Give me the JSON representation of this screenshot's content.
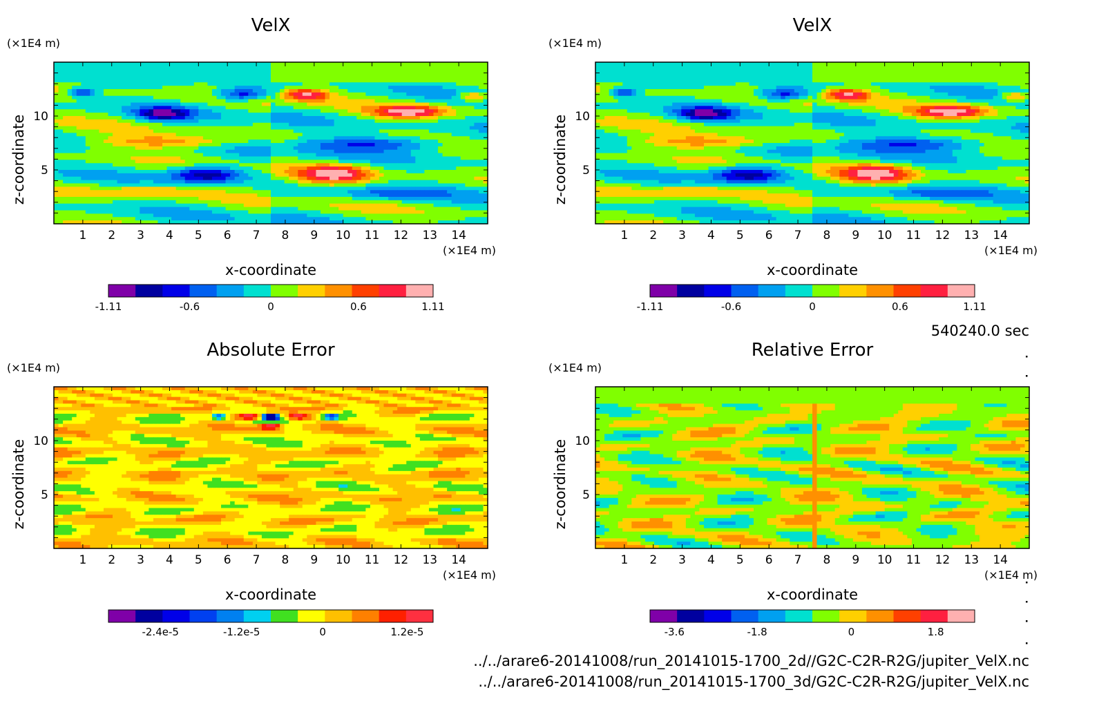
{
  "chart_data": [
    {
      "type": "heatmap",
      "title": "VelX",
      "xlabel": "x-coordinate",
      "ylabel": "z-coordinate",
      "x_unit": "(×1E4 m)",
      "y_unit": "(×1E4 m)",
      "xlim": [
        0,
        15
      ],
      "ylim": [
        0,
        15
      ],
      "xticks": [
        "1",
        "2",
        "3",
        "4",
        "5",
        "6",
        "7",
        "8",
        "9",
        "10",
        "11",
        "12",
        "13",
        "14"
      ],
      "yticks": [
        "5",
        "10"
      ],
      "colorbar": {
        "colors": [
          "#7f00a8",
          "#00009f",
          "#0000e8",
          "#0060f0",
          "#00a0f0",
          "#00e0d0",
          "#80ff00",
          "#ffd000",
          "#ff9000",
          "#ff4000",
          "#ff2040",
          "#ffb0b0"
        ],
        "tick_labels": [
          "-1.11",
          "-0.6",
          "0",
          "0.6",
          "1.11"
        ]
      },
      "field": "velx"
    },
    {
      "type": "heatmap",
      "title": "VelX",
      "xlabel": "x-coordinate",
      "ylabel": "z-coordinate",
      "x_unit": "(×1E4 m)",
      "y_unit": "(×1E4 m)",
      "xlim": [
        0,
        15
      ],
      "ylim": [
        0,
        15
      ],
      "xticks": [
        "1",
        "2",
        "3",
        "4",
        "5",
        "6",
        "7",
        "8",
        "9",
        "10",
        "11",
        "12",
        "13",
        "14"
      ],
      "yticks": [
        "5",
        "10"
      ],
      "colorbar": {
        "colors": [
          "#7f00a8",
          "#00009f",
          "#0000e8",
          "#0060f0",
          "#00a0f0",
          "#00e0d0",
          "#80ff00",
          "#ffd000",
          "#ff9000",
          "#ff4000",
          "#ff2040",
          "#ffb0b0"
        ],
        "tick_labels": [
          "-1.11",
          "-0.6",
          "0",
          "0.6",
          "1.11"
        ]
      },
      "field": "velx"
    },
    {
      "type": "heatmap",
      "title": "Absolute Error",
      "xlabel": "x-coordinate",
      "ylabel": "z-coordinate",
      "x_unit": "(×1E4 m)",
      "y_unit": "(×1E4 m)",
      "xlim": [
        0,
        15
      ],
      "ylim": [
        0,
        15
      ],
      "xticks": [
        "1",
        "2",
        "3",
        "4",
        "5",
        "6",
        "7",
        "8",
        "9",
        "10",
        "11",
        "12",
        "13",
        "14"
      ],
      "yticks": [
        "5",
        "10"
      ],
      "colorbar": {
        "colors": [
          "#7f00a8",
          "#00009f",
          "#0000e8",
          "#0040f0",
          "#0080f0",
          "#00d0f0",
          "#40e020",
          "#ffff00",
          "#ffc000",
          "#ff8000",
          "#ff2000",
          "#ff3040"
        ],
        "tick_labels": [
          "-2.4e-5",
          "-1.2e-5",
          "0",
          "1.2e-5"
        ]
      },
      "field": "abs"
    },
    {
      "type": "heatmap",
      "title": "Relative Error",
      "xlabel": "x-coordinate",
      "ylabel": "z-coordinate",
      "x_unit": "(×1E4 m)",
      "y_unit": "(×1E4 m)",
      "xlim": [
        0,
        15
      ],
      "ylim": [
        0,
        15
      ],
      "xticks": [
        "1",
        "2",
        "3",
        "4",
        "5",
        "6",
        "7",
        "8",
        "9",
        "10",
        "11",
        "12",
        "13",
        "14"
      ],
      "yticks": [
        "5",
        "10"
      ],
      "colorbar": {
        "colors": [
          "#7f00a8",
          "#00009f",
          "#0000e8",
          "#0060f0",
          "#00a0f0",
          "#00e0d0",
          "#80ff00",
          "#ffd000",
          "#ff9000",
          "#ff4000",
          "#ff2040",
          "#ffb0b0"
        ],
        "tick_labels": [
          "-3.6",
          "-1.8",
          "0",
          "1.8"
        ]
      },
      "field": "rel"
    }
  ],
  "time_label": "540240.0 sec",
  "files": [
    "../../arare6-20141008/run_20141015-1700_2d//G2C-C2R-R2G/jupiter_VelX.nc",
    "../../arare6-20141008/run_20141015-1700_3d/G2C-C2R-R2G/jupiter_VelX.nc"
  ]
}
